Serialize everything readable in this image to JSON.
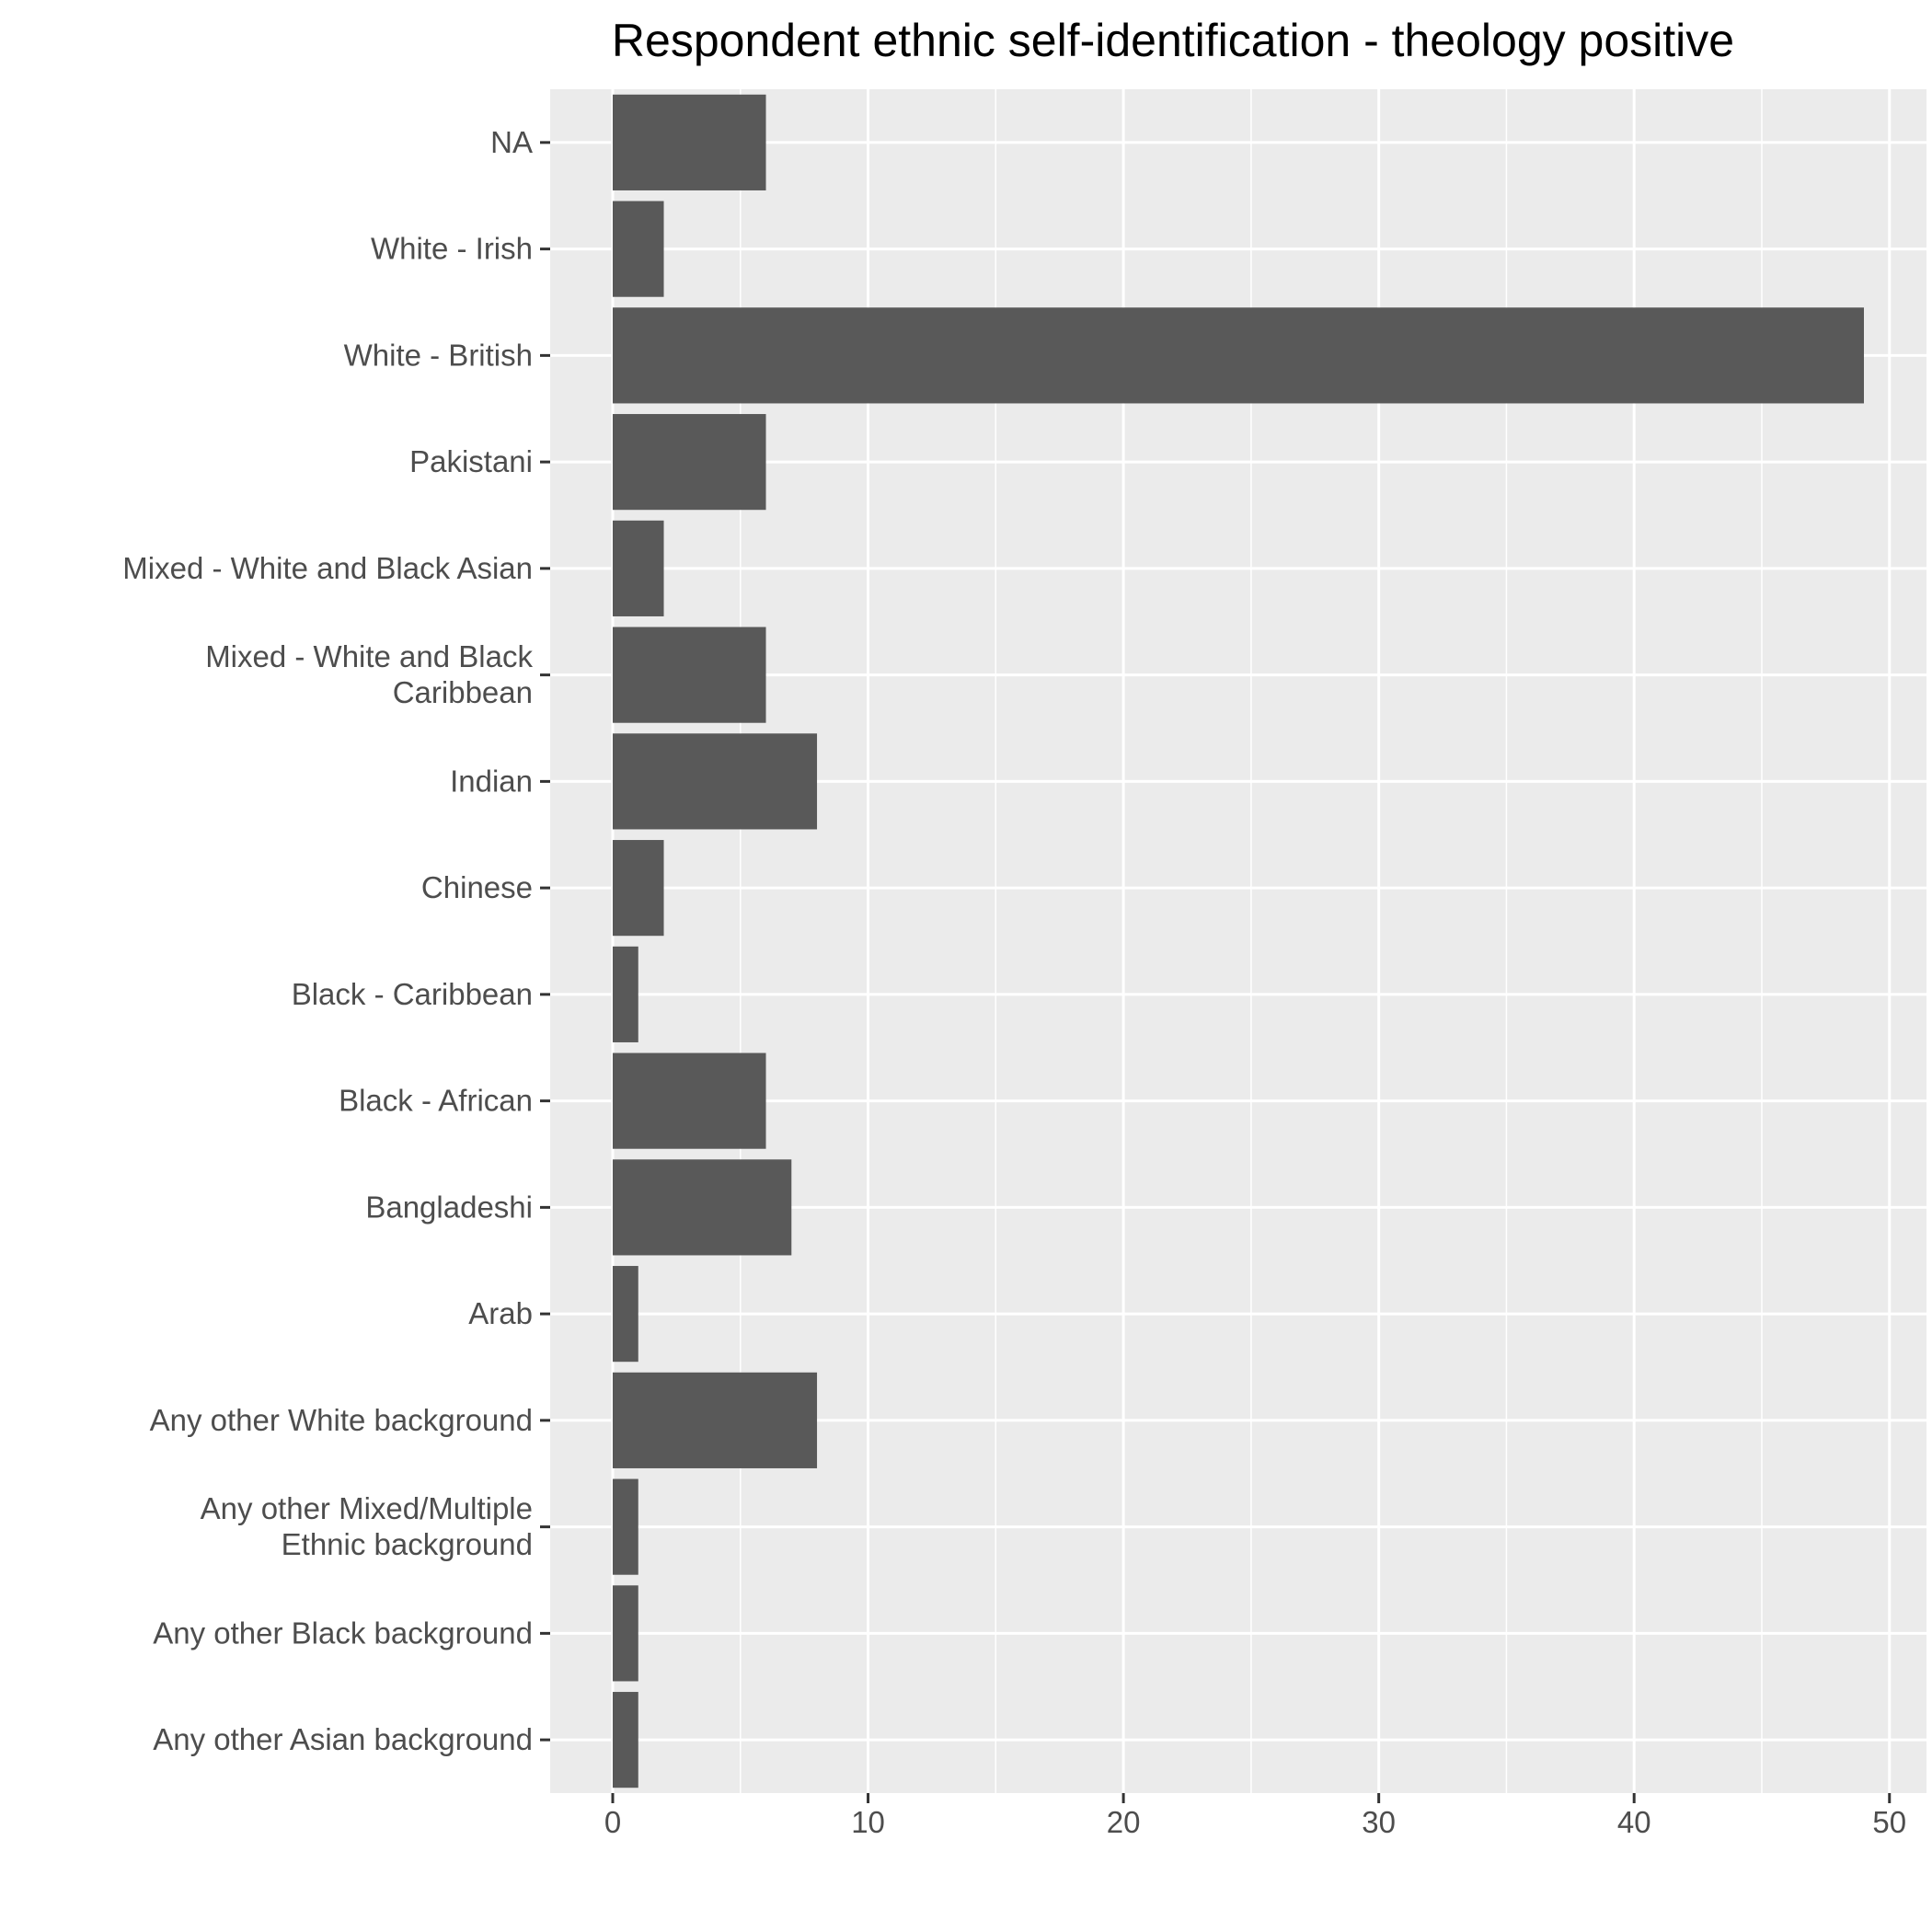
{
  "chart_data": {
    "type": "bar",
    "orientation": "horizontal",
    "title": "Respondent ethnic self-identification - theology positive",
    "xlabel": "",
    "ylabel": "",
    "categories": [
      [
        "NA"
      ],
      [
        "White - Irish"
      ],
      [
        "White - British"
      ],
      [
        "Pakistani"
      ],
      [
        "Mixed - White and Black Asian"
      ],
      [
        "Mixed - White and Black",
        "Caribbean"
      ],
      [
        "Indian"
      ],
      [
        "Chinese"
      ],
      [
        "Black - Caribbean"
      ],
      [
        "Black - African"
      ],
      [
        "Bangladeshi"
      ],
      [
        "Arab"
      ],
      [
        "Any other White background"
      ],
      [
        "Any other Mixed/Multiple",
        "Ethnic background"
      ],
      [
        "Any other Black background"
      ],
      [
        "Any other Asian background"
      ]
    ],
    "values": [
      6,
      2,
      49,
      6,
      2,
      6,
      8,
      2,
      1,
      6,
      7,
      1,
      8,
      1,
      1,
      1
    ],
    "xlim": [
      -2.45,
      51.45
    ],
    "xticks": [
      "0",
      "10",
      "20",
      "30",
      "40",
      "50"
    ],
    "grid": true,
    "legend": "none",
    "colors": {
      "panel": "#ebebeb",
      "bar": "#595959",
      "grid": "#ffffff",
      "tick": "#333333",
      "label": "#4d4d4d"
    }
  }
}
